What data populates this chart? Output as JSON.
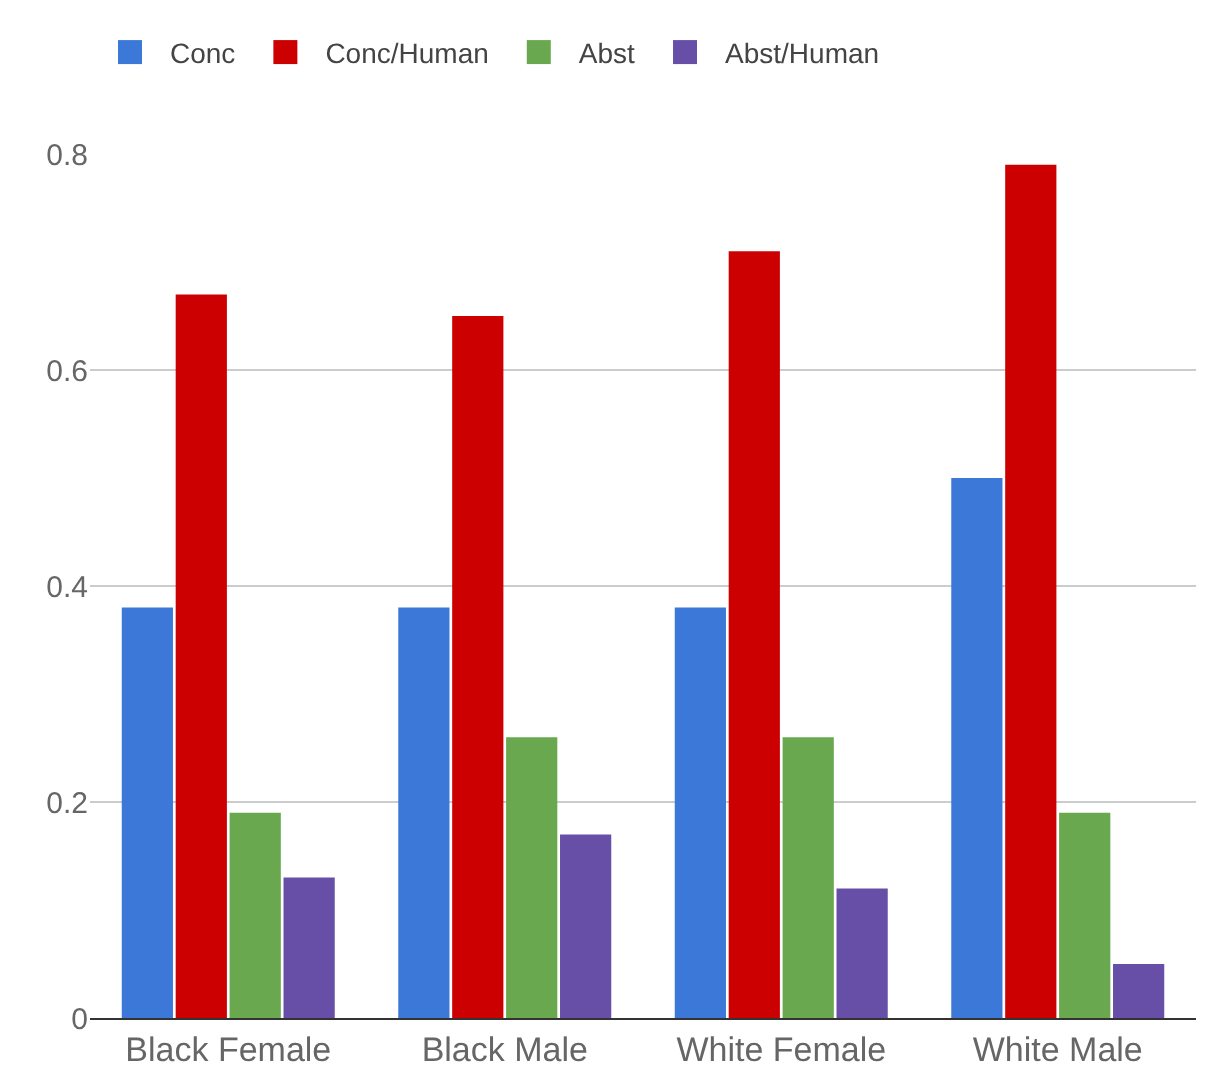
{
  "chart_data": {
    "type": "bar",
    "categories": [
      "Black Female",
      "Black Male",
      "White Female",
      "White Male"
    ],
    "series": [
      {
        "name": "Conc",
        "color": "#3c78d8",
        "values": [
          0.38,
          0.38,
          0.38,
          0.5
        ]
      },
      {
        "name": "Conc/Human",
        "color": "#cc0000",
        "values": [
          0.67,
          0.65,
          0.71,
          0.79
        ]
      },
      {
        "name": "Abst",
        "color": "#6aa84f",
        "values": [
          0.19,
          0.26,
          0.26,
          0.19
        ]
      },
      {
        "name": "Abst/Human",
        "color": "#674ea7",
        "values": [
          0.13,
          0.17,
          0.12,
          0.05
        ]
      }
    ],
    "ylim": [
      0,
      0.8
    ],
    "yticks": [
      0,
      0.2,
      0.4,
      0.6,
      0.8
    ],
    "grid": "y",
    "legend": "top left"
  }
}
